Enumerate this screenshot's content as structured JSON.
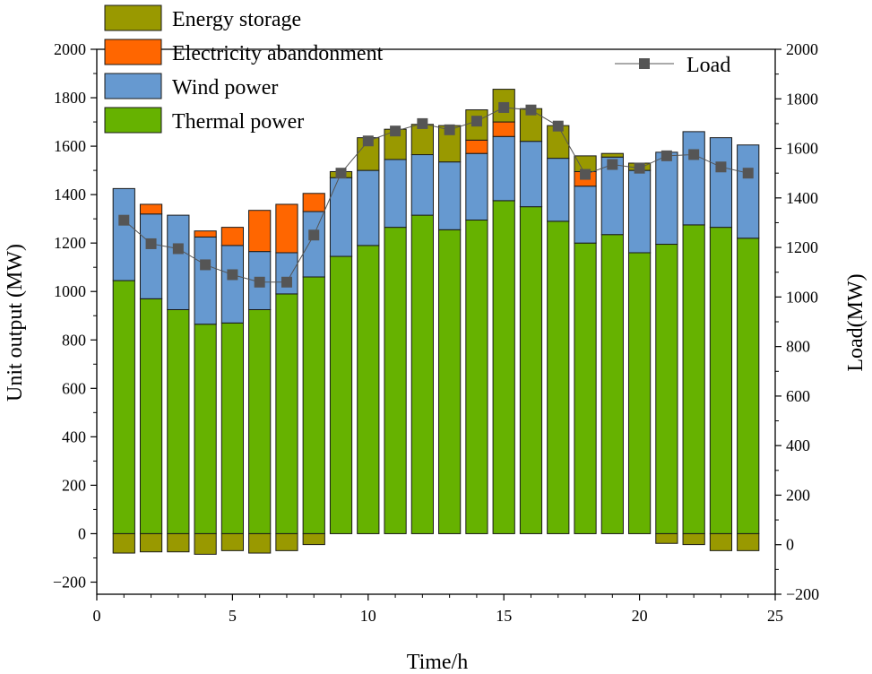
{
  "chart_data": {
    "type": "bar",
    "subtype": "stacked-bar-with-line",
    "xlabel": "Time/h",
    "ylabel_left": "Unit output (MW)",
    "ylabel_right": "Load(MW)",
    "xlim": [
      0,
      25
    ],
    "ylim_left": [
      -250,
      2000
    ],
    "ylim_right": [
      -200,
      2000
    ],
    "x_ticks": [
      0,
      5,
      10,
      15,
      20,
      25
    ],
    "y_ticks_left": [
      -200,
      0,
      200,
      400,
      600,
      800,
      1000,
      1200,
      1400,
      1600,
      1800,
      2000
    ],
    "y_ticks_right": [
      -200,
      0,
      200,
      400,
      600,
      800,
      1000,
      1200,
      1400,
      1600,
      1800,
      2000
    ],
    "x_tick_labels": [
      "0",
      "5",
      "10",
      "15",
      "20",
      "25"
    ],
    "y_tick_labels_left": [
      "−200",
      "0",
      "200",
      "400",
      "600",
      "800",
      "1000",
      "1200",
      "1400",
      "1600",
      "1800",
      "2000"
    ],
    "y_tick_labels_right": [
      "−200",
      "0",
      "200",
      "400",
      "600",
      "800",
      "1000",
      "1200",
      "1400",
      "1600",
      "1800",
      "2000"
    ],
    "hours": [
      1,
      2,
      3,
      4,
      5,
      6,
      7,
      8,
      9,
      10,
      11,
      12,
      13,
      14,
      15,
      16,
      17,
      18,
      19,
      20,
      21,
      22,
      23,
      24
    ],
    "series": [
      {
        "name": "Thermal power",
        "color": "#66b200",
        "values": [
          1045,
          970,
          925,
          865,
          870,
          925,
          990,
          1060,
          1145,
          1190,
          1265,
          1315,
          1255,
          1295,
          1375,
          1350,
          1290,
          1200,
          1235,
          1160,
          1195,
          1275,
          1265,
          1220
        ]
      },
      {
        "name": "Wind power",
        "color": "#6699d0",
        "values": [
          380,
          350,
          390,
          360,
          320,
          240,
          170,
          270,
          325,
          310,
          280,
          250,
          280,
          275,
          265,
          270,
          260,
          235,
          320,
          340,
          380,
          385,
          370,
          385
        ]
      },
      {
        "name": "Electricity abandonment",
        "color": "#ff6600",
        "values": [
          0,
          40,
          0,
          25,
          75,
          170,
          200,
          75,
          0,
          0,
          0,
          0,
          0,
          55,
          60,
          0,
          0,
          60,
          0,
          0,
          0,
          0,
          0,
          0
        ]
      },
      {
        "name": "Energy storage",
        "color": "#999900",
        "values": [
          -80,
          -75,
          -75,
          -85,
          -70,
          -80,
          -70,
          -45,
          25,
          135,
          125,
          125,
          150,
          125,
          135,
          135,
          135,
          65,
          15,
          30,
          -40,
          -45,
          -70,
          -70
        ]
      },
      {
        "name": "Load",
        "type": "line",
        "axis": "right",
        "color": "#555555",
        "values": [
          1310,
          1215,
          1195,
          1130,
          1090,
          1060,
          1060,
          1250,
          1500,
          1630,
          1670,
          1700,
          1675,
          1710,
          1765,
          1755,
          1690,
          1495,
          1535,
          1520,
          1570,
          1575,
          1525,
          1500
        ]
      }
    ],
    "legend": [
      {
        "name": "Energy storage",
        "color": "#999900"
      },
      {
        "name": "Electricity abandonment",
        "color": "#ff6600"
      },
      {
        "name": "Wind power",
        "color": "#6699d0"
      },
      {
        "name": "Thermal power",
        "color": "#66b200"
      }
    ],
    "legend_line": {
      "name": "Load",
      "color": "#555555"
    }
  }
}
